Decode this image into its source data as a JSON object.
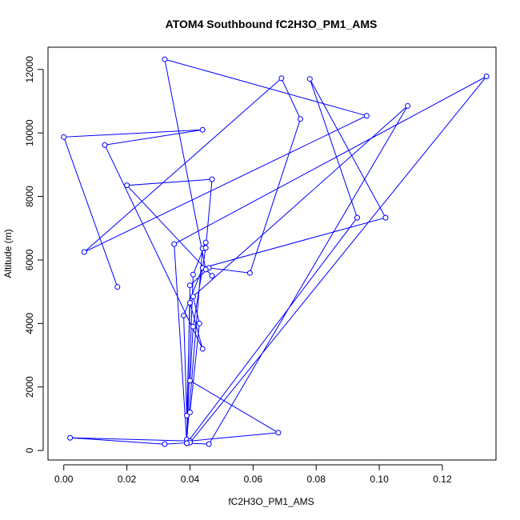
{
  "chart_data": {
    "type": "line",
    "title": "ATOM4 Southbound fC2H3O_PM1_AMS",
    "xlabel": "fC2H3O_PM1_AMS",
    "ylabel": "Altitude (m)",
    "xlim": [
      -0.005,
      0.137
    ],
    "ylim": [
      -300,
      12700
    ],
    "xticks": [
      0.0,
      0.02,
      0.04,
      0.06,
      0.08,
      0.1,
      0.12
    ],
    "xtick_labels": [
      "0.00",
      "0.02",
      "0.04",
      "0.06",
      "0.08",
      "0.10",
      "0.12"
    ],
    "yticks": [
      0,
      2000,
      4000,
      6000,
      8000,
      10000,
      12000
    ],
    "ytick_labels": [
      "0",
      "2000",
      "4000",
      "6000",
      "8000",
      "10000",
      "12000"
    ],
    "grid": false,
    "legend": "none",
    "series": [
      {
        "color": "#0000ff",
        "marker": "open-circle",
        "x": [
          0.017,
          0.0,
          0.044,
          0.013,
          0.044,
          0.04,
          0.039,
          0.038,
          0.044,
          0.102,
          0.078,
          0.093,
          0.039,
          0.041,
          0.045,
          0.044,
          0.039,
          0.04,
          0.046,
          0.059,
          0.075,
          0.069,
          0.0065,
          0.096,
          0.032,
          0.045,
          0.047,
          0.02,
          0.047,
          0.045,
          0.041,
          0.04,
          0.068,
          0.04,
          0.002,
          0.032,
          0.04,
          0.134,
          0.035,
          0.039,
          0.046,
          0.109,
          0.041,
          0.043,
          0.04
        ],
        "y": [
          5150,
          9870,
          10100,
          9620,
          3200,
          4650,
          1100,
          4250,
          5750,
          7330,
          11700,
          7330,
          230,
          5540,
          6550,
          6360,
          350,
          5200,
          5750,
          5590,
          10440,
          11720,
          6250,
          10540,
          12320,
          5700,
          5500,
          8350,
          8540,
          6380,
          3900,
          2200,
          560,
          300,
          400,
          200,
          250,
          11780,
          6500,
          230,
          200,
          10850,
          4850,
          4000,
          1200
        ]
      }
    ]
  }
}
